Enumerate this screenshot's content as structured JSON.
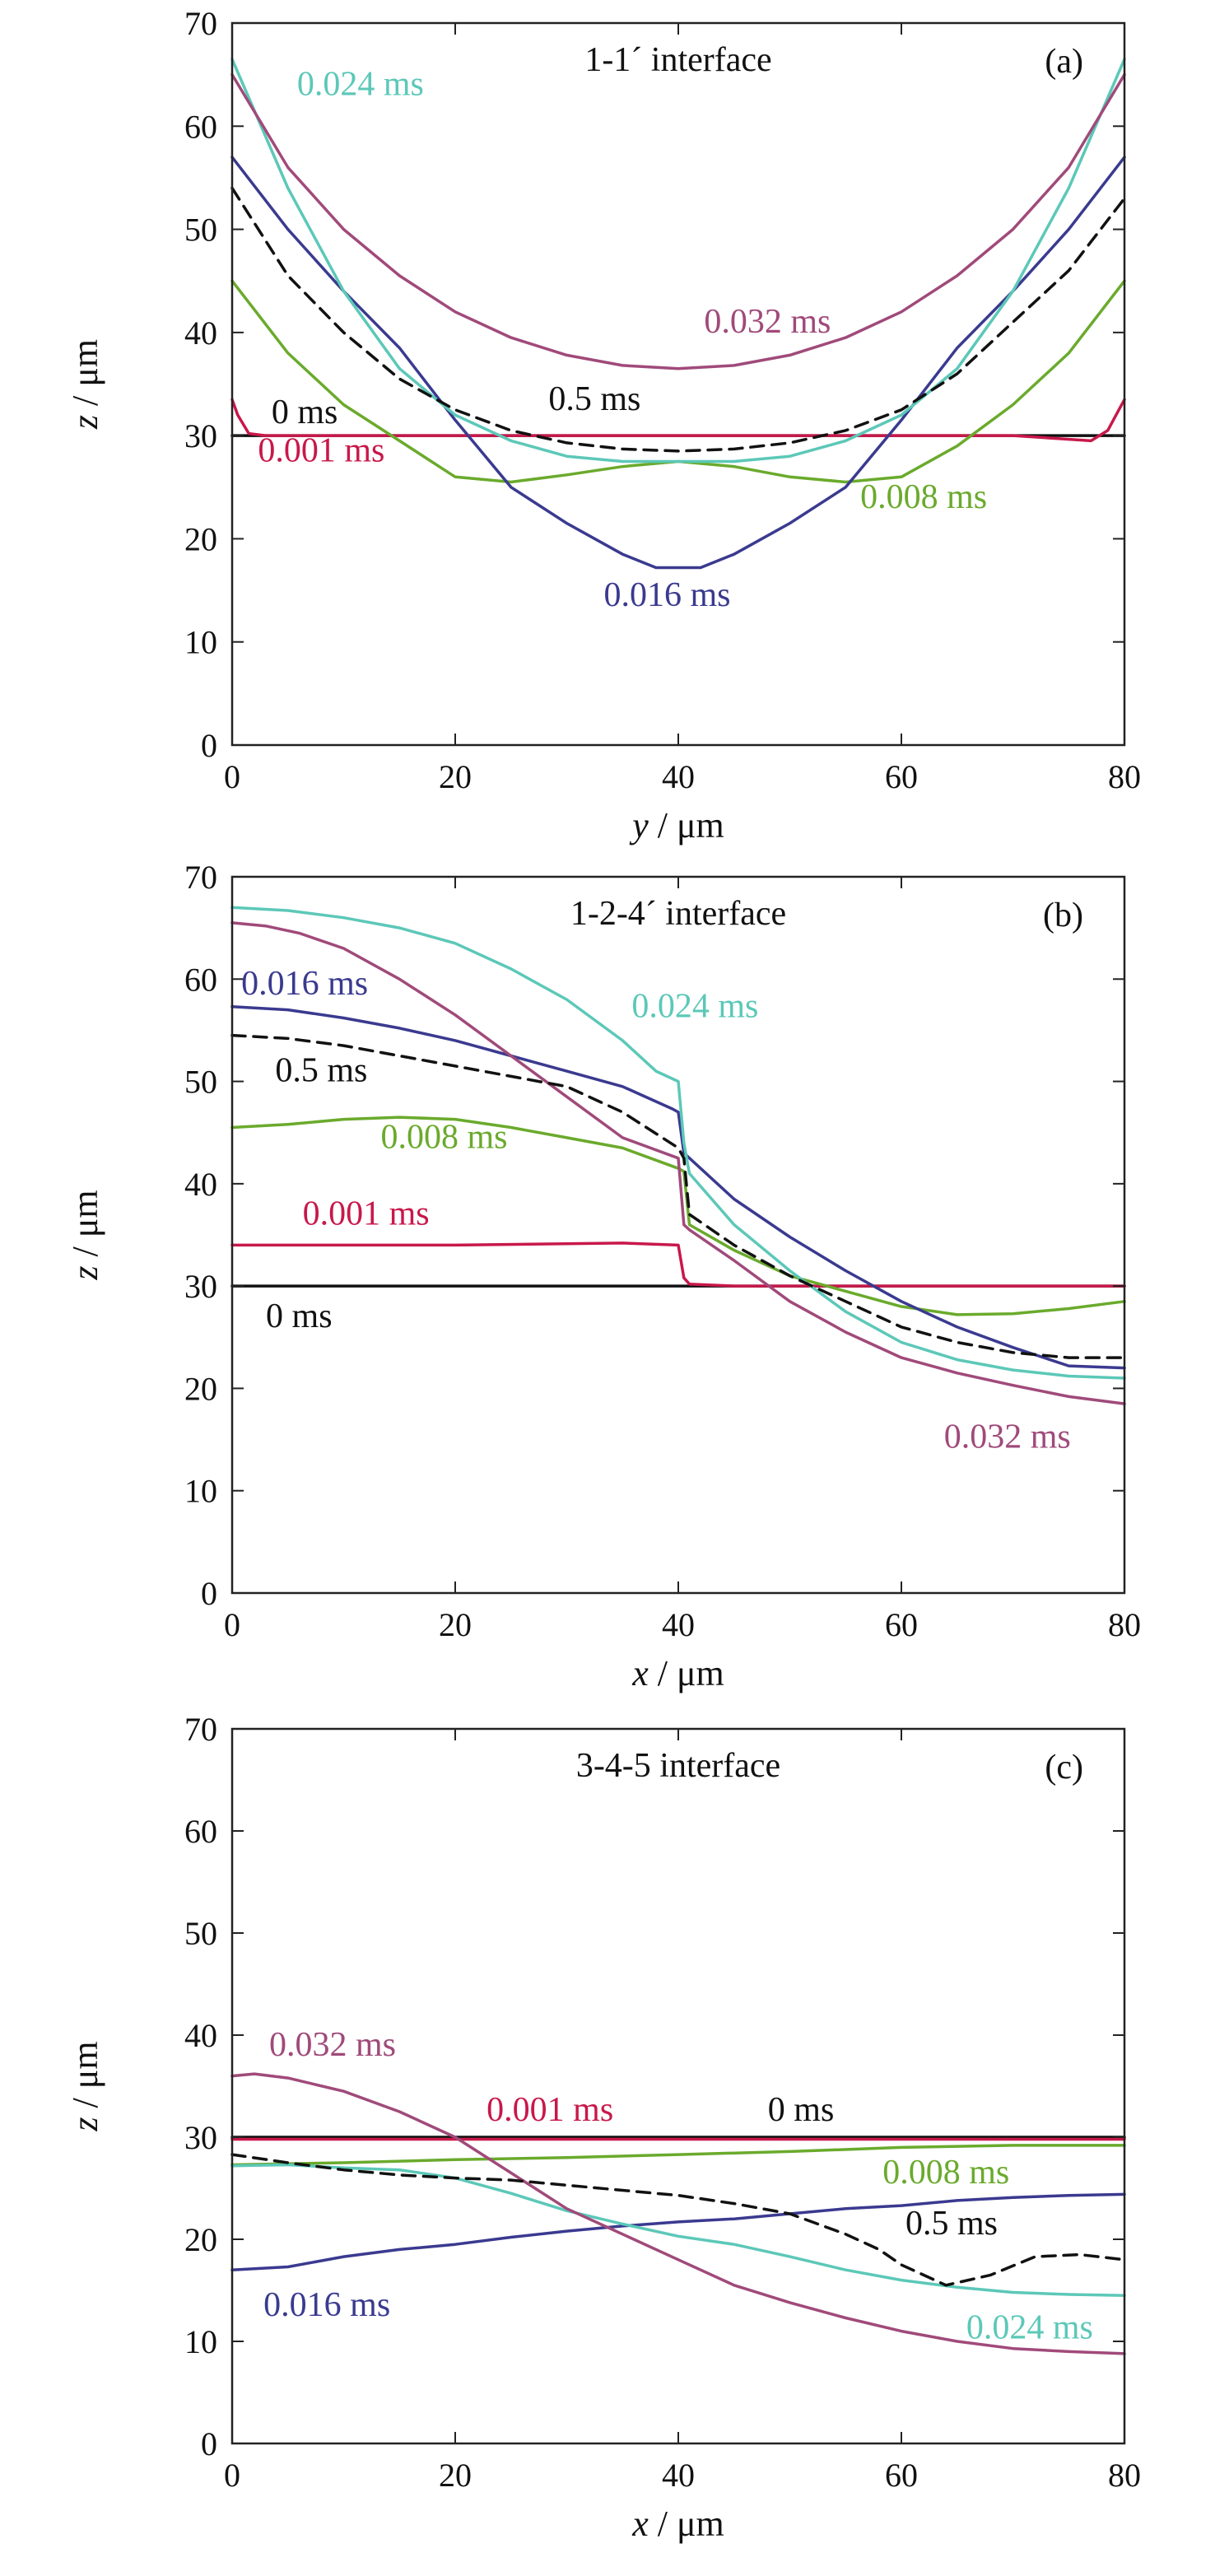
{
  "colors": {
    "0 ms": "#111111",
    "0.001 ms": "#c8184a",
    "0.008 ms": "#6aaa2c",
    "0.016 ms": "#3a3a90",
    "0.024 ms": "#5cc8b8",
    "0.032 ms": "#a04a7a",
    "0.5 ms": "#111111"
  },
  "chart_data": [
    {
      "type": "line",
      "panel": "(a)",
      "title": "1-1´ interface",
      "xlabel_var": "y",
      "xlabel_unit": " / μm",
      "ylabel_var": "z",
      "ylabel_unit": " / μm",
      "xlim": [
        0,
        80
      ],
      "ylim": [
        0,
        70
      ],
      "xticks": [
        0,
        20,
        40,
        60,
        80
      ],
      "yticks": [
        0,
        10,
        20,
        30,
        40,
        50,
        60,
        70
      ],
      "series": [
        {
          "name": "0 ms",
          "dashed": false,
          "x": [
            0,
            80
          ],
          "y": [
            30,
            30
          ],
          "label": {
            "text": "0 ms",
            "x": 6.5,
            "y": 31.2
          }
        },
        {
          "name": "0.001 ms",
          "dashed": false,
          "x": [
            0,
            0.5,
            1.5,
            3,
            10,
            40,
            70,
            77,
            78.5,
            79.5,
            80
          ],
          "y": [
            33.5,
            32,
            30.2,
            30,
            30,
            30,
            30,
            29.5,
            30.5,
            32.5,
            33.5
          ],
          "label": {
            "text": "0.001 ms",
            "x": 8,
            "y": 27.5
          }
        },
        {
          "name": "0.008 ms",
          "dashed": false,
          "x": [
            0,
            5,
            10,
            15,
            20,
            25,
            30,
            35,
            40,
            45,
            50,
            55,
            60,
            65,
            70,
            75,
            80
          ],
          "y": [
            45,
            38,
            33,
            29.5,
            26,
            25.5,
            26.2,
            27,
            27.5,
            27,
            26,
            25.5,
            26,
            29,
            33,
            38,
            45
          ],
          "label": {
            "text": "0.008 ms",
            "x": 62,
            "y": 23
          }
        },
        {
          "name": "0.016 ms",
          "dashed": false,
          "x": [
            0,
            5,
            10,
            15,
            20,
            25,
            30,
            35,
            38,
            42,
            45,
            50,
            55,
            60,
            65,
            70,
            75,
            80
          ],
          "y": [
            57,
            50,
            44,
            38.5,
            31.5,
            25,
            21.5,
            18.5,
            17.2,
            17.2,
            18.5,
            21.5,
            25,
            31.5,
            38.5,
            44,
            50,
            57
          ],
          "label": {
            "text": "0.016 ms",
            "x": 39,
            "y": 13.5
          }
        },
        {
          "name": "0.024 ms",
          "dashed": false,
          "x": [
            0,
            5,
            10,
            15,
            20,
            25,
            30,
            35,
            40,
            45,
            50,
            55,
            60,
            65,
            70,
            75,
            80
          ],
          "y": [
            66.5,
            54,
            44,
            36.5,
            32,
            29.5,
            28,
            27.5,
            27.5,
            27.5,
            28,
            29.5,
            32,
            36.5,
            44,
            54,
            66.5
          ],
          "label": {
            "text": "0.024 ms",
            "x": 11.5,
            "y": 63
          }
        },
        {
          "name": "0.032 ms",
          "dashed": false,
          "x": [
            0,
            5,
            10,
            15,
            20,
            25,
            30,
            35,
            40,
            45,
            50,
            55,
            60,
            65,
            70,
            75,
            80
          ],
          "y": [
            65,
            56,
            50,
            45.5,
            42,
            39.5,
            37.8,
            36.8,
            36.5,
            36.8,
            37.8,
            39.5,
            42,
            45.5,
            50,
            56,
            65
          ],
          "label": {
            "text": "0.032 ms",
            "x": 48,
            "y": 40
          }
        },
        {
          "name": "0.5 ms",
          "dashed": true,
          "x": [
            0,
            5,
            10,
            15,
            20,
            25,
            30,
            35,
            40,
            45,
            50,
            55,
            60,
            65,
            70,
            75,
            80
          ],
          "y": [
            54,
            45.5,
            40,
            35.5,
            32.5,
            30.5,
            29.3,
            28.7,
            28.5,
            28.7,
            29.3,
            30.5,
            32.5,
            36,
            41,
            46,
            53
          ],
          "label": {
            "text": "0.5 ms",
            "x": 32.5,
            "y": 32.5
          }
        }
      ]
    },
    {
      "type": "line",
      "panel": "(b)",
      "title": "1-2-4´ interface",
      "xlabel_var": "x",
      "xlabel_unit": " / μm",
      "ylabel_var": "z",
      "ylabel_unit": " / μm",
      "xlim": [
        0,
        80
      ],
      "ylim": [
        0,
        70
      ],
      "xticks": [
        0,
        20,
        40,
        60,
        80
      ],
      "yticks": [
        0,
        10,
        20,
        30,
        40,
        50,
        60,
        70
      ],
      "series": [
        {
          "name": "0 ms",
          "dashed": false,
          "x": [
            0,
            80
          ],
          "y": [
            30,
            30
          ],
          "label": {
            "text": "0 ms",
            "x": 6,
            "y": 26
          }
        },
        {
          "name": "0.001 ms",
          "dashed": false,
          "x": [
            0,
            20,
            35,
            40,
            40.5,
            41,
            45,
            60,
            80
          ],
          "y": [
            34,
            34,
            34.2,
            34,
            30.8,
            30.2,
            30,
            30,
            30
          ],
          "label": {
            "text": "0.001 ms",
            "x": 12,
            "y": 36
          }
        },
        {
          "name": "0.008 ms",
          "dashed": false,
          "x": [
            0,
            5,
            10,
            15,
            20,
            25,
            30,
            35,
            40,
            40.5,
            41,
            45,
            50,
            55,
            60,
            65,
            70,
            75,
            80
          ],
          "y": [
            45.5,
            45.8,
            46.3,
            46.5,
            46.3,
            45.5,
            44.5,
            43.5,
            41.5,
            41.2,
            36,
            33.5,
            31,
            29.5,
            28,
            27.2,
            27.3,
            27.8,
            28.5
          ],
          "label": {
            "text": "0.008 ms",
            "x": 19,
            "y": 43.5
          }
        },
        {
          "name": "0.016 ms",
          "dashed": false,
          "x": [
            0,
            5,
            10,
            15,
            20,
            25,
            30,
            35,
            39.5,
            40,
            40.5,
            45,
            50,
            55,
            60,
            65,
            70,
            75,
            80
          ],
          "y": [
            57.3,
            57,
            56.2,
            55.2,
            54,
            52.5,
            51,
            49.5,
            47.3,
            47,
            43,
            38.5,
            34.8,
            31.5,
            28.5,
            26,
            24,
            22.2,
            22
          ],
          "label": {
            "text": "0.016 ms",
            "x": 6.5,
            "y": 58.5
          }
        },
        {
          "name": "0.024 ms",
          "dashed": false,
          "x": [
            0,
            5,
            10,
            15,
            20,
            25,
            30,
            35,
            38,
            40,
            40.5,
            41,
            45,
            50,
            55,
            60,
            65,
            70,
            75,
            80
          ],
          "y": [
            67,
            66.7,
            66,
            65,
            63.5,
            61,
            58,
            54,
            51,
            50,
            44,
            41,
            36,
            31.5,
            27.5,
            24.5,
            22.8,
            21.8,
            21.2,
            21
          ],
          "label": {
            "text": "0.024 ms",
            "x": 41.5,
            "y": 56.3
          }
        },
        {
          "name": "0.032 ms",
          "dashed": false,
          "x": [
            0,
            3,
            6,
            10,
            15,
            20,
            25,
            30,
            35,
            40,
            40.5,
            41,
            45,
            50,
            55,
            60,
            65,
            70,
            75,
            80
          ],
          "y": [
            65.5,
            65.2,
            64.5,
            63,
            60,
            56.5,
            52.5,
            48.5,
            44.5,
            42.5,
            36,
            35.5,
            32.5,
            28.5,
            25.5,
            23,
            21.5,
            20.3,
            19.2,
            18.5
          ],
          "label": {
            "text": "0.032 ms",
            "x": 69.5,
            "y": 14.2
          }
        },
        {
          "name": "0.5 ms",
          "dashed": true,
          "x": [
            0,
            5,
            10,
            15,
            20,
            25,
            30,
            35,
            40,
            40.5,
            41,
            45,
            50,
            55,
            60,
            65,
            70,
            75,
            80
          ],
          "y": [
            54.5,
            54.2,
            53.5,
            52.5,
            51.5,
            50.5,
            49.5,
            47,
            43.5,
            42.5,
            37,
            34,
            31,
            28.5,
            26,
            24.5,
            23.5,
            23,
            23
          ],
          "label": {
            "text": "0.5 ms",
            "x": 8,
            "y": 50
          }
        }
      ]
    },
    {
      "type": "line",
      "panel": "(c)",
      "title": "3-4-5 interface",
      "xlabel_var": "x",
      "xlabel_unit": " / μm",
      "ylabel_var": "z",
      "ylabel_unit": " / μm",
      "xlim": [
        0,
        80
      ],
      "ylim": [
        0,
        70
      ],
      "xticks": [
        0,
        20,
        40,
        60,
        80
      ],
      "yticks": [
        0,
        10,
        20,
        30,
        40,
        50,
        60,
        70
      ],
      "series": [
        {
          "name": "0 ms",
          "dashed": false,
          "x": [
            0,
            80
          ],
          "y": [
            30,
            30
          ],
          "label": {
            "text": "0 ms",
            "x": 51,
            "y": 31.6
          }
        },
        {
          "name": "0.001 ms",
          "dashed": false,
          "x": [
            0,
            80
          ],
          "y": [
            29.8,
            29.8
          ],
          "label": {
            "text": "0.001 ms",
            "x": 28.5,
            "y": 31.6
          }
        },
        {
          "name": "0.008 ms",
          "dashed": false,
          "x": [
            0,
            10,
            20,
            30,
            40,
            50,
            60,
            70,
            80
          ],
          "y": [
            27.3,
            27.5,
            27.8,
            28,
            28.3,
            28.6,
            29,
            29.2,
            29.2
          ],
          "label": {
            "text": "0.008 ms",
            "x": 64,
            "y": 25.5
          }
        },
        {
          "name": "0.016 ms",
          "dashed": false,
          "x": [
            0,
            5,
            10,
            15,
            20,
            25,
            30,
            35,
            40,
            45,
            50,
            55,
            60,
            65,
            70,
            75,
            80
          ],
          "y": [
            17,
            17.3,
            18.3,
            19,
            19.5,
            20.2,
            20.8,
            21.3,
            21.7,
            22,
            22.5,
            23,
            23.3,
            23.8,
            24.1,
            24.3,
            24.4
          ],
          "label": {
            "text": "0.016 ms",
            "x": 8.5,
            "y": 12.5
          }
        },
        {
          "name": "0.024 ms",
          "dashed": false,
          "x": [
            0,
            5,
            10,
            15,
            20,
            25,
            30,
            35,
            40,
            45,
            50,
            55,
            60,
            65,
            70,
            75,
            80
          ],
          "y": [
            27.2,
            27.3,
            27,
            26.8,
            26,
            24.5,
            22.8,
            21.5,
            20.3,
            19.5,
            18.3,
            17,
            16,
            15.3,
            14.8,
            14.6,
            14.5
          ],
          "label": {
            "text": "0.024 ms",
            "x": 71.5,
            "y": 10.3
          }
        },
        {
          "name": "0.032 ms",
          "dashed": false,
          "x": [
            0,
            2,
            5,
            10,
            15,
            20,
            25,
            30,
            35,
            40,
            45,
            50,
            55,
            60,
            65,
            70,
            75,
            80
          ],
          "y": [
            36,
            36.2,
            35.8,
            34.5,
            32.5,
            30,
            26.5,
            23,
            20.5,
            18,
            15.5,
            13.8,
            12.3,
            11,
            10,
            9.3,
            9,
            8.8
          ],
          "label": {
            "text": "0.032 ms",
            "x": 9,
            "y": 38
          }
        },
        {
          "name": "0.5 ms",
          "dashed": true,
          "x": [
            0,
            5,
            10,
            15,
            20,
            25,
            30,
            35,
            40,
            45,
            50,
            55,
            58,
            60,
            64,
            68,
            72,
            76,
            80
          ],
          "y": [
            28.3,
            27.5,
            26.8,
            26.3,
            26,
            25.8,
            25.3,
            24.8,
            24.3,
            23.5,
            22.5,
            20.5,
            19,
            17.5,
            15.5,
            16.5,
            18.3,
            18.5,
            18
          ],
          "label": {
            "text": "0.5 ms",
            "x": 64.5,
            "y": 20.5
          }
        }
      ]
    }
  ]
}
